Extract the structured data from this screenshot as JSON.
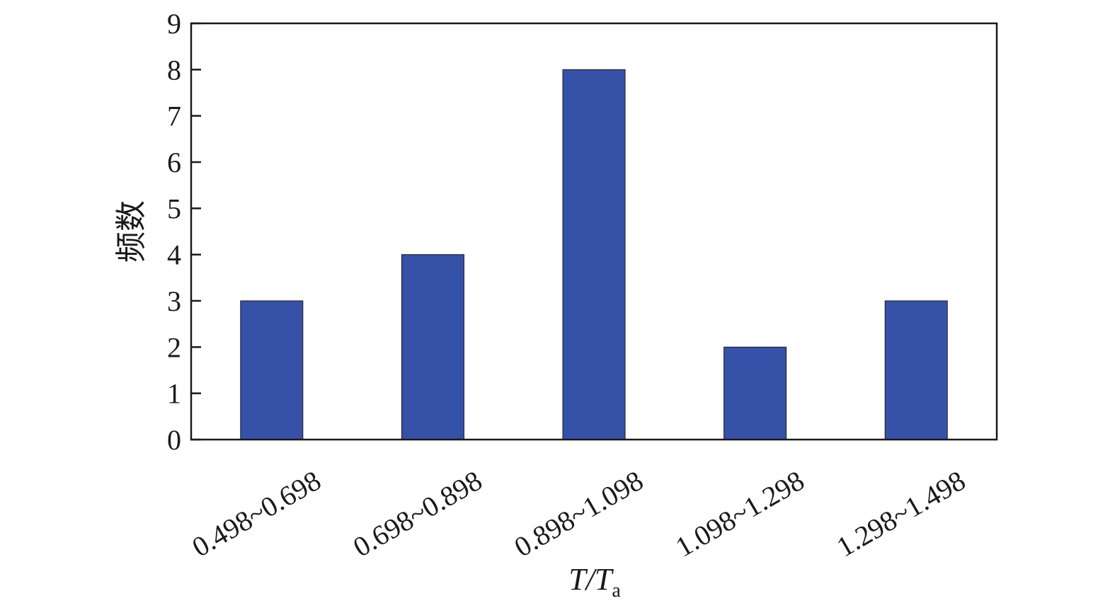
{
  "chart_data": {
    "type": "bar",
    "categories": [
      "0.498~0.698",
      "0.698~0.898",
      "0.898~1.098",
      "1.098~1.298",
      "1.298~1.498"
    ],
    "values": [
      3,
      4,
      8,
      2,
      3
    ],
    "xlabel": {
      "main": "T/T",
      "sub": "a"
    },
    "ylabel": "频数",
    "ylim": [
      0,
      9
    ],
    "yticks": [
      "0",
      "1",
      "2",
      "3",
      "4",
      "5",
      "6",
      "7",
      "8",
      "9"
    ],
    "bar_color": "#3651A8",
    "grid": false,
    "legend": "none"
  }
}
